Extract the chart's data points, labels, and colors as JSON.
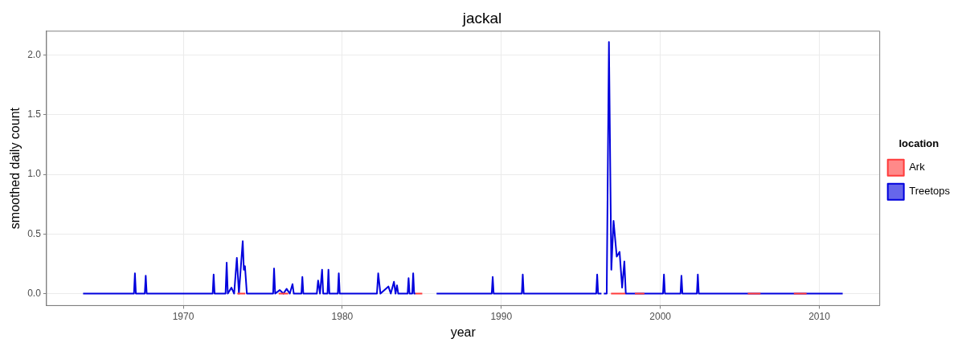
{
  "chart_data": {
    "type": "line",
    "title": "jackal",
    "xlabel": "year",
    "ylabel": "smoothed daily count",
    "legend_title": "location",
    "legend": "right",
    "grid": true,
    "xlim": [
      1961.4,
      2013.8
    ],
    "xticks": [
      1970,
      1980,
      1990,
      2000,
      2010
    ],
    "ylim": [
      -0.1,
      2.2
    ],
    "yticks": [
      {
        "value": 0,
        "label": "0.0"
      },
      {
        "value": 0.5,
        "label": "0.5"
      },
      {
        "value": 1,
        "label": "1.0"
      },
      {
        "value": 1.5,
        "label": "1.5"
      },
      {
        "value": 2,
        "label": "2.0"
      }
    ],
    "series": [
      {
        "name": "Ark",
        "color": "#ff3b3b",
        "x": [
          1973.4,
          1973.9,
          1974.0,
          1976.0,
          1976.6,
          1976.7,
          1984.6,
          1985.03,
          1985.5,
          1996.9,
          1997.8,
          1997.9,
          1998.4,
          1999.0,
          1999.1,
          2005.5,
          2006.3,
          2006.4,
          2008.4,
          2009.2
        ],
        "values": [
          0,
          0,
          null,
          0,
          0,
          null,
          0,
          0,
          null,
          0,
          0,
          null,
          0,
          0,
          null,
          0,
          0,
          null,
          0,
          0
        ]
      },
      {
        "name": "Treetops",
        "color": "#0000dd",
        "x": [
          1963.7,
          1966.9,
          1966.96,
          1967.02,
          1967.58,
          1967.64,
          1967.7,
          1971.85,
          1971.91,
          1971.97,
          1972.66,
          1972.73,
          1972.8,
          1973.03,
          1973.2,
          1973.37,
          1973.5,
          1973.74,
          1973.81,
          1973.88,
          1974.0,
          1975.65,
          1975.71,
          1975.78,
          1976.07,
          1976.3,
          1976.5,
          1976.7,
          1976.87,
          1976.95,
          1977.43,
          1977.49,
          1977.55,
          1978.4,
          1978.48,
          1978.6,
          1978.73,
          1978.8,
          1979.07,
          1979.13,
          1979.19,
          1979.72,
          1979.78,
          1979.84,
          1982.18,
          1982.26,
          1982.4,
          1982.9,
          1983.05,
          1983.25,
          1983.35,
          1983.44,
          1983.52,
          1984.11,
          1984.17,
          1984.23,
          1984.4,
          1984.46,
          1984.52,
          1984.6,
          1985.5,
          1985.93,
          1989.4,
          1989.46,
          1989.52,
          1991.29,
          1991.35,
          1991.41,
          1995.97,
          1996.03,
          1996.09,
          1996.3,
          1996.35,
          1996.45,
          1996.63,
          1996.77,
          1996.92,
          1997.06,
          1997.26,
          1997.44,
          1997.6,
          1997.74,
          1997.83,
          2000.17,
          2000.23,
          2000.29,
          2001.27,
          2001.33,
          2001.39,
          2002.3,
          2002.36,
          2002.42,
          2011.47
        ],
        "values": [
          0,
          0,
          0.17,
          0,
          0,
          0.15,
          0,
          0,
          0.16,
          0,
          0,
          0.26,
          0,
          0.05,
          0,
          0.3,
          0,
          0.44,
          0.2,
          0.23,
          0,
          0,
          0.21,
          0,
          0.03,
          0,
          0.04,
          0,
          0.08,
          0,
          0,
          0.14,
          0,
          0,
          0.11,
          0,
          0.2,
          0,
          0,
          0.2,
          0,
          0,
          0.17,
          0,
          0,
          0.17,
          0,
          0.06,
          0,
          0.1,
          0,
          0.07,
          0,
          0,
          0.13,
          0,
          0,
          0.17,
          0,
          0,
          null,
          0,
          0,
          0.14,
          0,
          0,
          0.16,
          0,
          0,
          0.16,
          0,
          0,
          null,
          0,
          0,
          2.11,
          0.2,
          0.61,
          0.31,
          0.35,
          0.05,
          0.27,
          0,
          0,
          0.16,
          0,
          0,
          0.15,
          0,
          0,
          0.16,
          0,
          0
        ]
      }
    ]
  }
}
